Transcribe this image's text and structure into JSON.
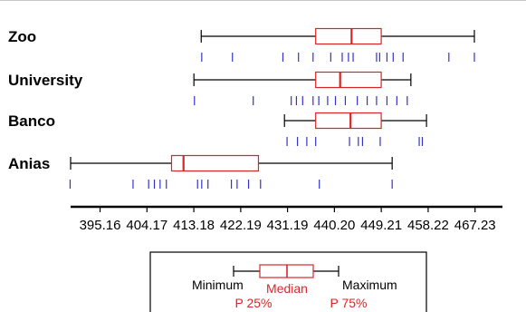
{
  "chart_data": {
    "type": "boxplot",
    "xlim": [
      389.5,
      472.5
    ],
    "ticks": [
      "395.16",
      "404.17",
      "413.18",
      "422.19",
      "431.19",
      "440.20",
      "449.21",
      "458.22",
      "467.23"
    ],
    "categories": [
      {
        "name": "Zoo",
        "min": 414.6,
        "q1": 436.6,
        "median": 443.5,
        "q3": 449.2,
        "max": 467.1,
        "points": [
          414.7,
          420.6,
          430.3,
          433.3,
          436.1,
          439.5,
          441.7,
          442.9,
          443.8,
          448.3,
          448.9,
          450.3,
          451.5,
          453.4,
          462.2,
          467.1
        ]
      },
      {
        "name": "University",
        "min": 413.2,
        "q1": 436.6,
        "median": 441.3,
        "q3": 449.2,
        "max": 454.9,
        "points": [
          413.3,
          424.6,
          431.9,
          432.9,
          434.1,
          436.1,
          437.2,
          438.9,
          440.4,
          442.3,
          444.6,
          446.5,
          448.3,
          450.3,
          452.2,
          454.2
        ]
      },
      {
        "name": "Banco",
        "min": 430.6,
        "q1": 436.6,
        "median": 443.3,
        "q3": 449.2,
        "max": 457.9,
        "points": [
          431.1,
          433.1,
          434.9,
          436.6,
          443.1,
          444.8,
          445.6,
          449.0,
          456.5,
          457.1
        ]
      },
      {
        "name": "Anias",
        "min": 389.5,
        "q1": 408.9,
        "median": 411.2,
        "q3": 425.6,
        "max": 451.3,
        "points": [
          389.4,
          401.5,
          404.5,
          405.6,
          406.7,
          407.9,
          413.9,
          414.7,
          415.9,
          420.4,
          421.5,
          423.7,
          426.0,
          437.3,
          451.3
        ]
      }
    ],
    "legend": {
      "min": "Minimum",
      "median": "Median",
      "max": "Maximum",
      "q1": "P 25%",
      "q3": "P 75%"
    },
    "colors": {
      "box": "#d62728",
      "points": "#3333cc",
      "whisker": "#000000"
    }
  }
}
